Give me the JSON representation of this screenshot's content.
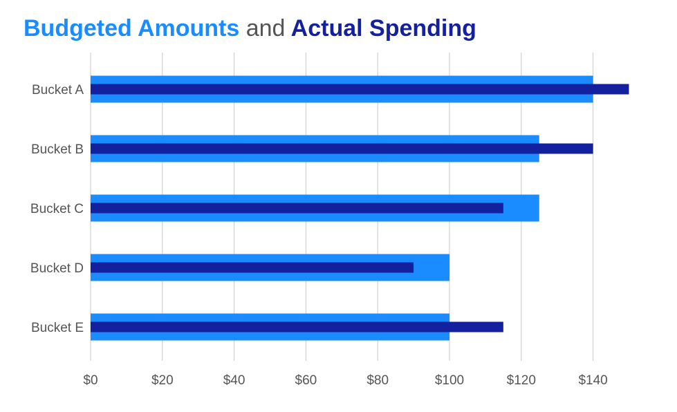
{
  "title": {
    "part1": "Budgeted Amounts",
    "part2": "and",
    "part3": "Actual Spending"
  },
  "colors": {
    "budget": "#1a8cff",
    "actual": "#14219e",
    "grid": "#c8c8c8",
    "text": "#555555"
  },
  "chart_data": {
    "type": "bar",
    "orientation": "horizontal",
    "title": "Budgeted Amounts and Actual Spending",
    "categories": [
      "Bucket A",
      "Bucket B",
      "Bucket C",
      "Bucket D",
      "Bucket E"
    ],
    "series": [
      {
        "values": [
          140,
          125,
          125,
          100,
          100
        ]
      },
      {
        "values": [
          150,
          140,
          115,
          90,
          115
        ]
      }
    ],
    "xlim": [
      0,
      150
    ],
    "x_ticks": [
      0,
      20,
      40,
      60,
      80,
      100,
      120,
      140
    ],
    "x_tick_labels": [
      "$0",
      "$20",
      "$40",
      "$60",
      "$80",
      "$100",
      "$120",
      "$140"
    ],
    "grid": true,
    "legend": "none"
  }
}
